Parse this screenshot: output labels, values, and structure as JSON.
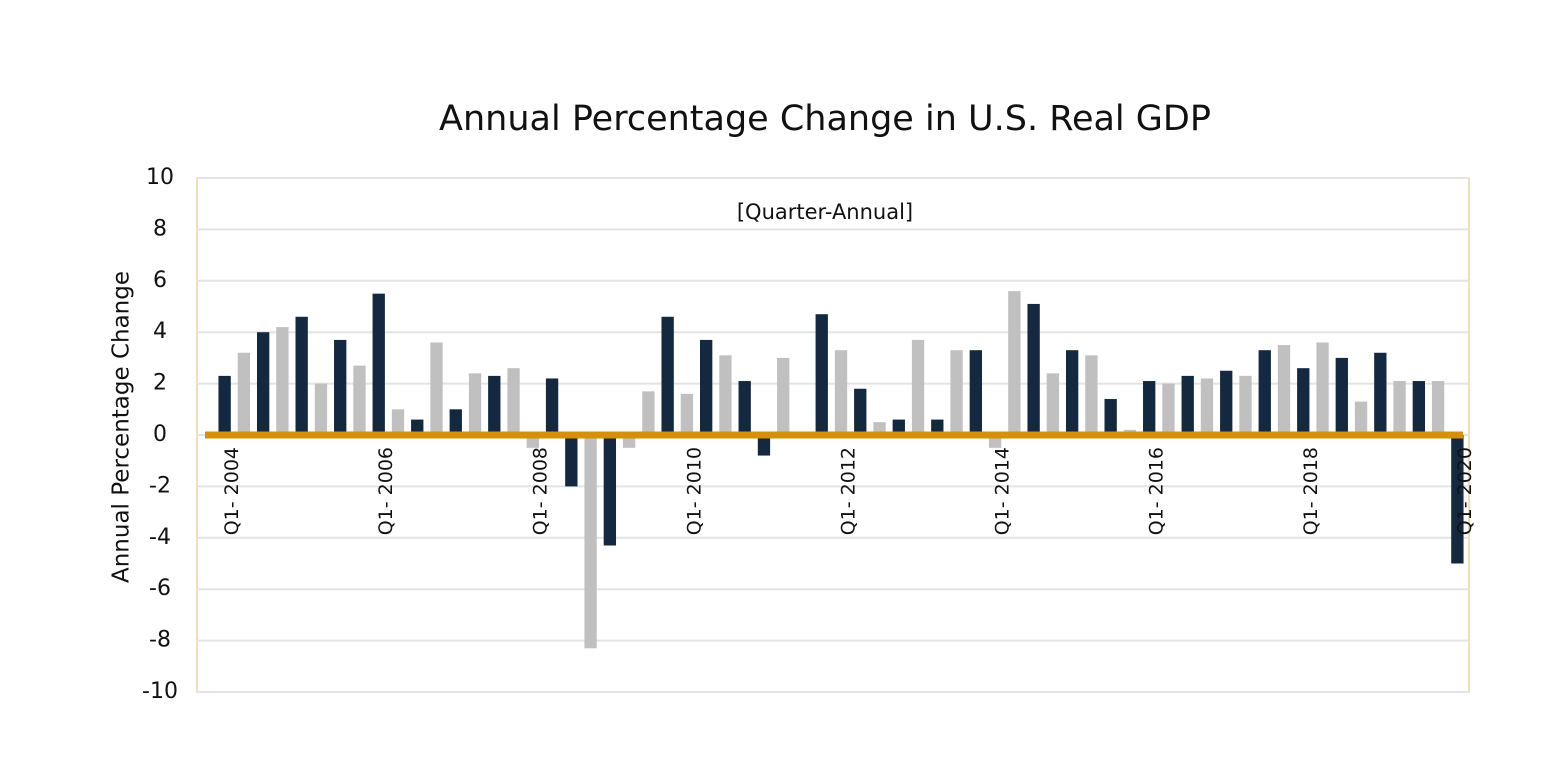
{
  "chart_data": {
    "type": "bar",
    "title": "Annual Percentage Change in U.S. Real GDP",
    "subtitle": "[Quarter-Annual]",
    "y_label": "Annual Percentage Change",
    "categories": [
      "Q1- 2004",
      null,
      null,
      null,
      null,
      null,
      null,
      null,
      "Q1- 2006",
      null,
      null,
      null,
      null,
      null,
      null,
      null,
      "Q1- 2008",
      null,
      null,
      null,
      null,
      null,
      null,
      null,
      "Q1- 2010",
      null,
      null,
      null,
      null,
      null,
      null,
      null,
      "Q1- 2012",
      null,
      null,
      null,
      null,
      null,
      null,
      null,
      "Q1- 2014",
      null,
      null,
      null,
      null,
      null,
      null,
      null,
      "Q1- 2016",
      null,
      null,
      null,
      null,
      null,
      null,
      null,
      "Q1- 2018",
      null,
      null,
      null,
      null,
      null,
      null,
      null,
      "Q1- 2020"
    ],
    "values": [
      2.3,
      3.2,
      4.0,
      4.2,
      4.6,
      2.0,
      3.7,
      2.7,
      5.5,
      1.0,
      0.6,
      3.6,
      1.0,
      2.4,
      2.3,
      2.6,
      -0.5,
      2.2,
      -2.0,
      -8.3,
      -4.3,
      -0.5,
      1.7,
      4.6,
      1.6,
      3.7,
      3.1,
      2.1,
      -0.8,
      3.0,
      0,
      4.7,
      3.3,
      1.8,
      0.5,
      0.6,
      3.7,
      0.6,
      3.3,
      3.3,
      -0.5,
      5.6,
      5.1,
      2.4,
      3.3,
      3.1,
      1.4,
      0.2,
      2.1,
      2.0,
      2.3,
      2.2,
      2.5,
      2.3,
      3.3,
      3.5,
      2.6,
      3.6,
      3.0,
      1.3,
      3.2,
      2.1,
      2.1,
      2.1,
      -5.0
    ],
    "colors": [
      "#14293f",
      "#c0c0c0",
      "#14293f",
      "#c0c0c0",
      "#14293f",
      "#c0c0c0",
      "#14293f",
      "#c0c0c0",
      "#14293f",
      "#c0c0c0",
      "#14293f",
      "#c0c0c0",
      "#14293f",
      "#c0c0c0",
      "#14293f",
      "#c0c0c0",
      "#c0c0c0",
      "#14293f",
      "#14293f",
      "#c0c0c0",
      "#14293f",
      "#c0c0c0",
      "#c0c0c0",
      "#14293f",
      "#c0c0c0",
      "#14293f",
      "#c0c0c0",
      "#14293f",
      "#14293f",
      "#c0c0c0",
      "#c0c0c0",
      "#14293f",
      "#c0c0c0",
      "#14293f",
      "#c0c0c0",
      "#14293f",
      "#c0c0c0",
      "#14293f",
      "#c0c0c0",
      "#14293f",
      "#c0c0c0",
      "#c0c0c0",
      "#14293f",
      "#c0c0c0",
      "#14293f",
      "#c0c0c0",
      "#14293f",
      "#c0c0c0",
      "#14293f",
      "#c0c0c0",
      "#14293f",
      "#c0c0c0",
      "#14293f",
      "#c0c0c0",
      "#14293f",
      "#c0c0c0",
      "#14293f",
      "#c0c0c0",
      "#14293f",
      "#c0c0c0",
      "#14293f",
      "#c0c0c0",
      "#14293f",
      "#c0c0c0",
      "#14293f"
    ],
    "baseline_color": "#d4900a",
    "ylim": [
      -10,
      10
    ],
    "yticks": [
      -10,
      -8,
      -6,
      -4,
      -2,
      0,
      2,
      4,
      6,
      8,
      10
    ],
    "grid": true
  }
}
